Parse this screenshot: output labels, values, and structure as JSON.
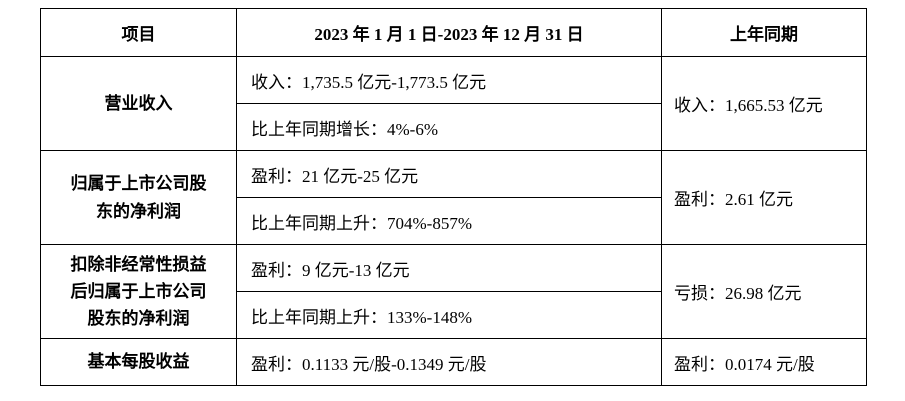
{
  "table": {
    "headers": {
      "item": "项目",
      "period": "2023 年 1 月 1 日-2023 年 12 月 31 日",
      "prior": "上年同期"
    },
    "rows": [
      {
        "item": "营业收入",
        "details": {
          "value": "收入：1,735.5 亿元-1,773.5 亿元",
          "change": "比上年同期增长：4%-6%"
        },
        "prior": "收入：1,665.53 亿元"
      },
      {
        "item": "归属于上市公司股东的净利润",
        "details": {
          "value": "盈利：21 亿元-25 亿元",
          "change": "比上年同期上升：704%-857%"
        },
        "prior": "盈利：2.61 亿元"
      },
      {
        "item": "扣除非经常性损益后归属于上市公司股东的净利润",
        "details": {
          "value": "盈利：9 亿元-13 亿元",
          "change": "比上年同期上升：133%-148%"
        },
        "prior": "亏损：26.98 亿元"
      },
      {
        "item": "基本每股收益",
        "details": {
          "value": "盈利：0.1133 元/股-0.1349 元/股"
        },
        "prior": "盈利：0.0174 元/股"
      }
    ]
  }
}
